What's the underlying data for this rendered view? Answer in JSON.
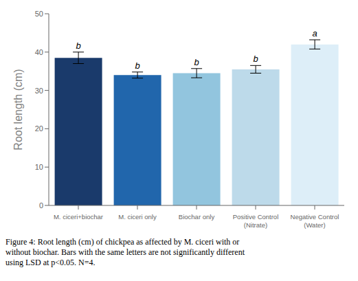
{
  "chart_data": {
    "type": "bar",
    "categories": [
      "M. ciceri+biochar",
      "M. ciceri only",
      "Biochar only",
      "Positive Control\n(Nitrate)",
      "Negative Control\n(Water)"
    ],
    "values": [
      38.5,
      34.0,
      34.5,
      35.5,
      42.0
    ],
    "errors": [
      1.5,
      0.8,
      1.2,
      1.0,
      1.2
    ],
    "colors": [
      "#1a3a6b",
      "#2166ac",
      "#92c5de",
      "#bddaea",
      "#ddeef8"
    ],
    "annotations": [
      "b",
      "b",
      "b",
      "b",
      "a"
    ],
    "ylabel": "Root length (cm)",
    "ylim": [
      0,
      50
    ],
    "yticks": [
      0,
      10,
      20,
      30,
      40,
      50
    ],
    "grid": false,
    "caption": "Figure 4: Root length (cm) of chickpea as affected by M. ciceri with or\nwithout biochar. Bars with the same letters are not significantly different\nusing LSD at p<0.05. N=4."
  }
}
